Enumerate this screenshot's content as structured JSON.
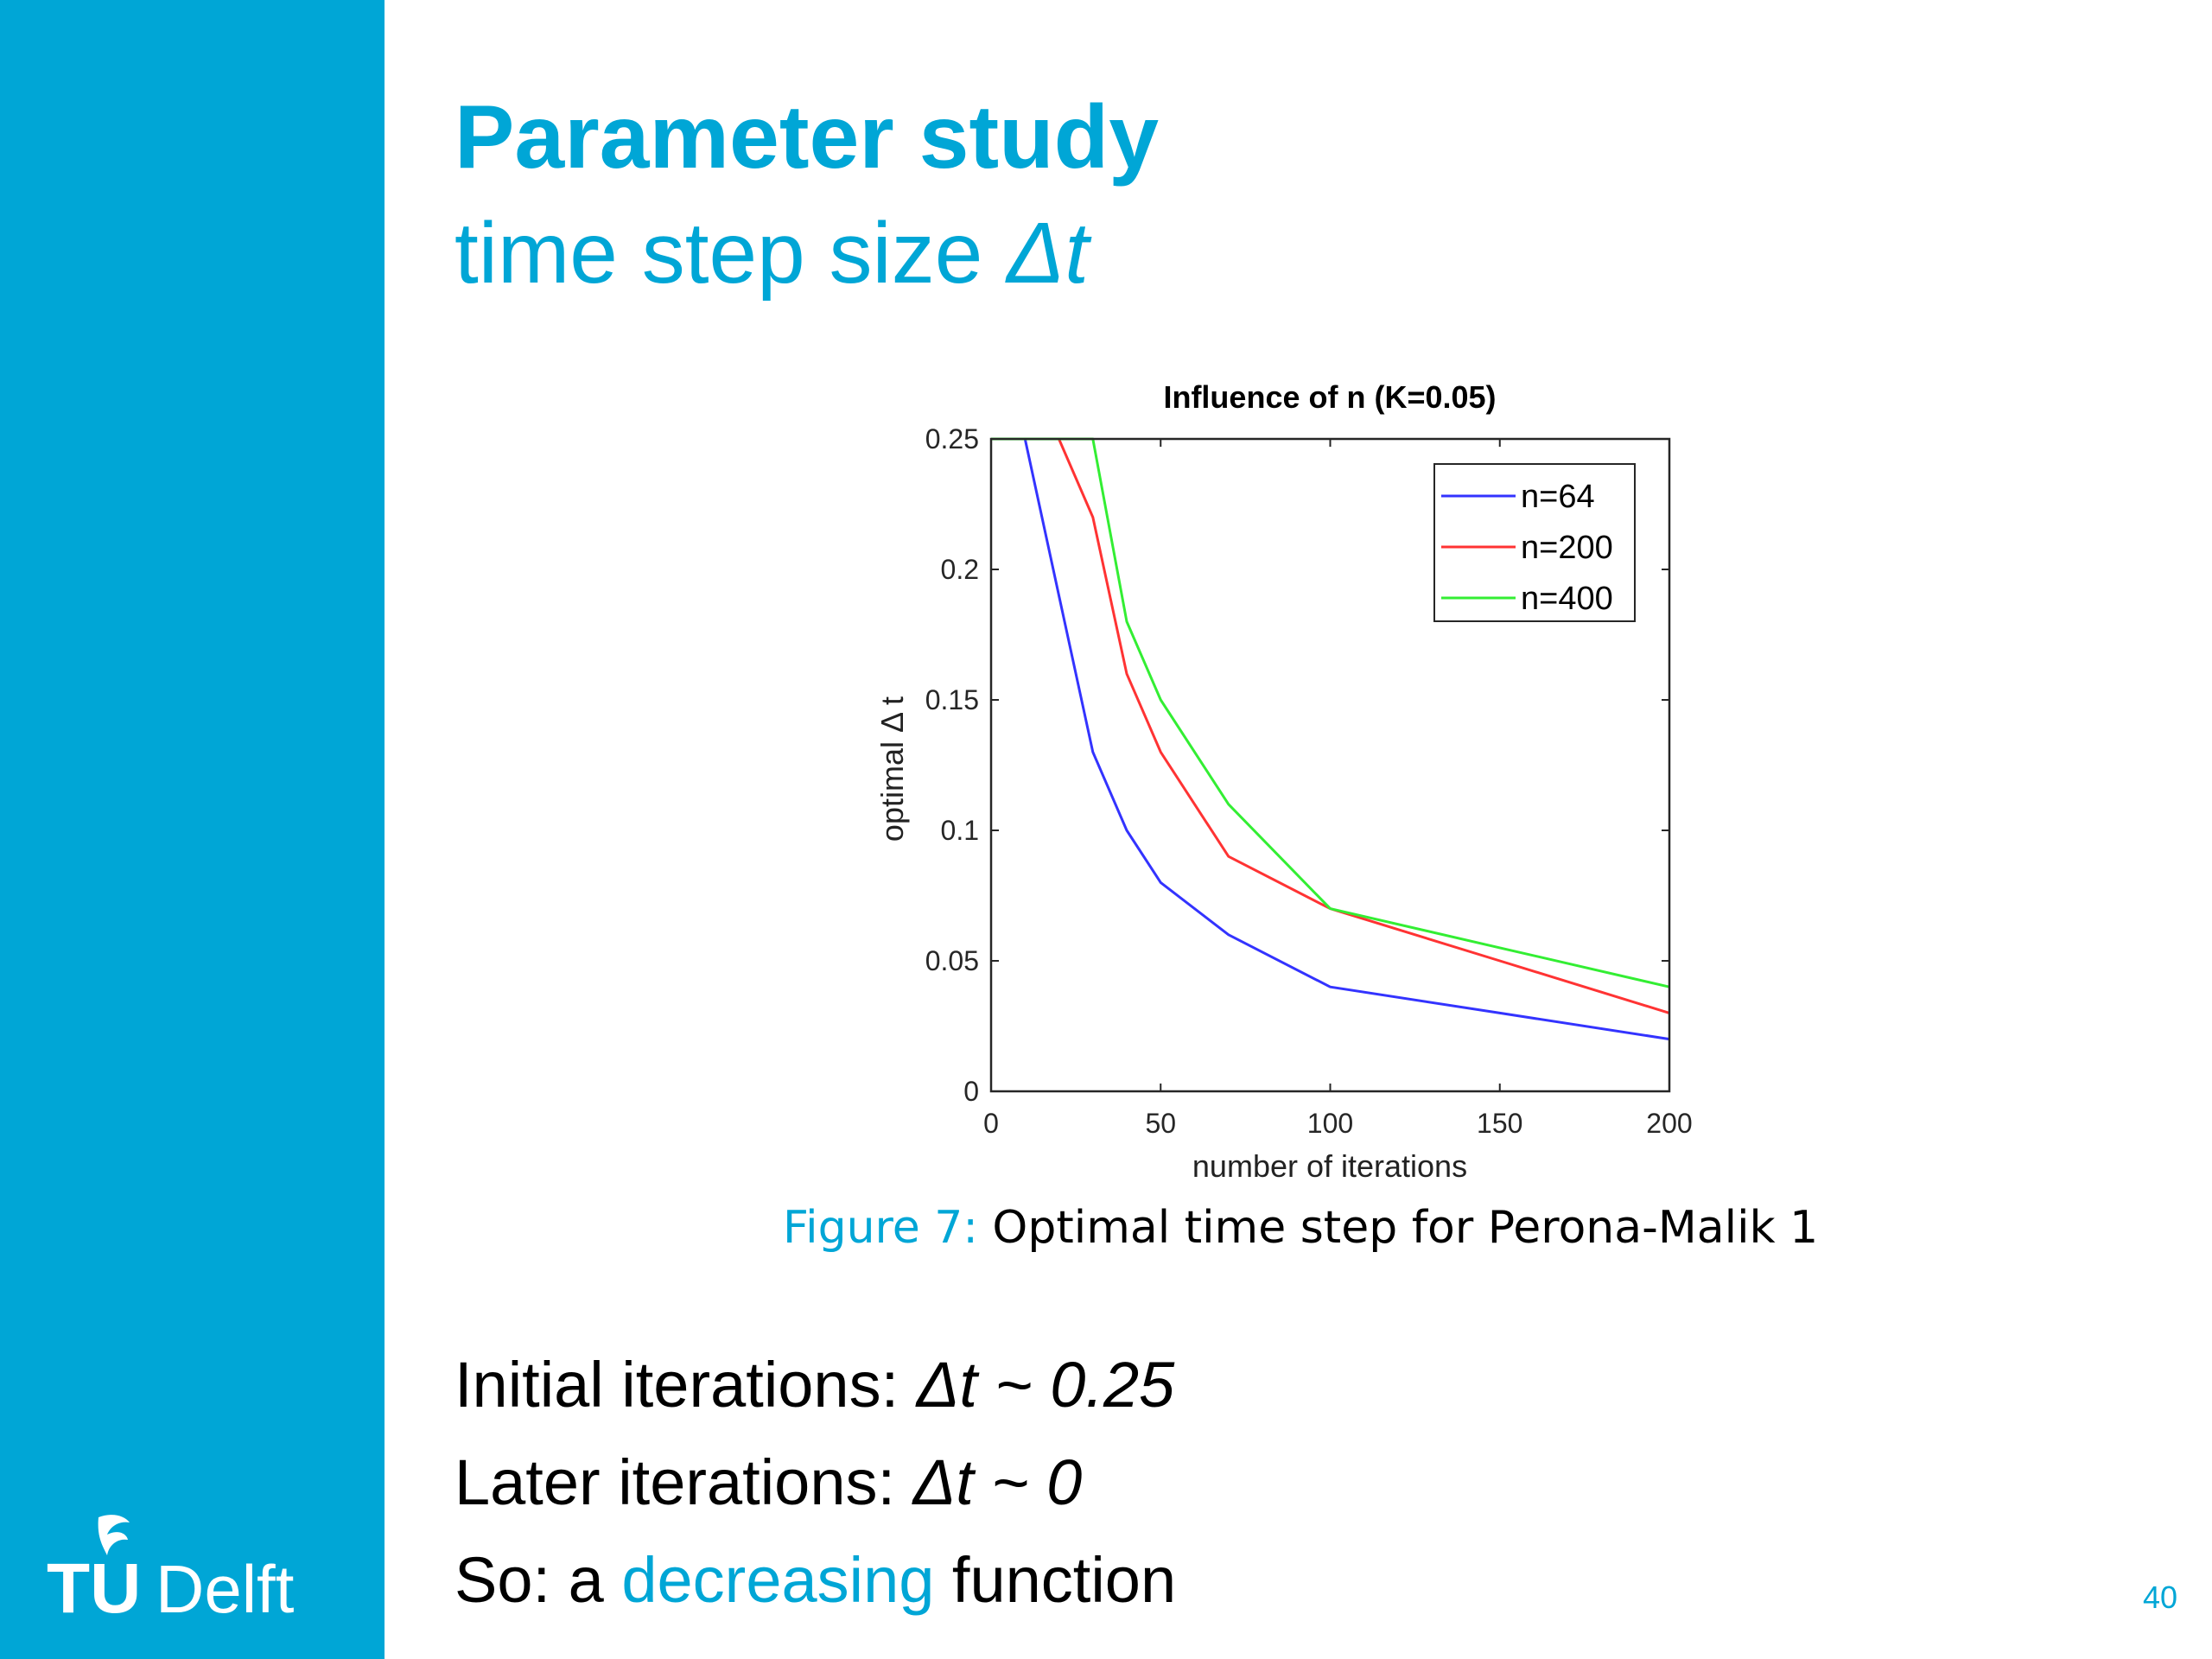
{
  "slide": {
    "title": "Parameter study",
    "subtitle_text": "time step size ",
    "subtitle_symbol": "Δt",
    "page_number": "40"
  },
  "logo": {
    "text_tu": "TU",
    "text_delft": "Delft"
  },
  "caption": {
    "label": "Figure 7:",
    "text": " Optimal time step for Perona-Malik 1"
  },
  "bullets": [
    {
      "prefix": "Initial iterations: ",
      "math": "Δt ~ 0.25"
    },
    {
      "prefix": "Later iterations: ",
      "math": "Δt ~ 0"
    },
    {
      "prefix": "So: a ",
      "highlight": "decreasing",
      "suffix": " function"
    }
  ],
  "colors": {
    "accent": "#00A6D6",
    "n64": "#3333ff",
    "n200": "#ff3333",
    "n400": "#33ee33"
  },
  "chart_data": {
    "type": "line",
    "title": "Influence of n (K=0.05)",
    "xlabel": "number of iterations",
    "ylabel": "optimal Δ t",
    "xlim": [
      0,
      200
    ],
    "ylim": [
      0,
      0.25
    ],
    "xticks": [
      0,
      50,
      100,
      150,
      200
    ],
    "yticks": [
      0,
      0.05,
      0.1,
      0.15,
      0.2,
      0.25
    ],
    "xtick_labels": [
      "0",
      "50",
      "100",
      "150",
      "200"
    ],
    "ytick_labels": [
      "0",
      "0.05",
      "0.1",
      "0.15",
      "0.2",
      "0.25"
    ],
    "grid": false,
    "legend_position": "top-right",
    "series": [
      {
        "name": "n=64",
        "color": "#3333ff",
        "x": [
          0,
          10,
          20,
          30,
          40,
          50,
          70,
          100,
          150,
          200
        ],
        "y": [
          0.25,
          0.25,
          0.19,
          0.13,
          0.1,
          0.08,
          0.06,
          0.04,
          0.03,
          0.02
        ]
      },
      {
        "name": "n=200",
        "color": "#ff3333",
        "x": [
          0,
          10,
          20,
          30,
          40,
          50,
          70,
          100,
          150,
          200
        ],
        "y": [
          0.25,
          0.25,
          0.25,
          0.22,
          0.16,
          0.13,
          0.09,
          0.07,
          0.05,
          0.03
        ]
      },
      {
        "name": "n=400",
        "color": "#33ee33",
        "x": [
          0,
          10,
          20,
          30,
          40,
          50,
          70,
          100,
          150,
          200
        ],
        "y": [
          0.25,
          0.25,
          0.25,
          0.25,
          0.18,
          0.15,
          0.11,
          0.07,
          0.055,
          0.04
        ]
      }
    ]
  }
}
